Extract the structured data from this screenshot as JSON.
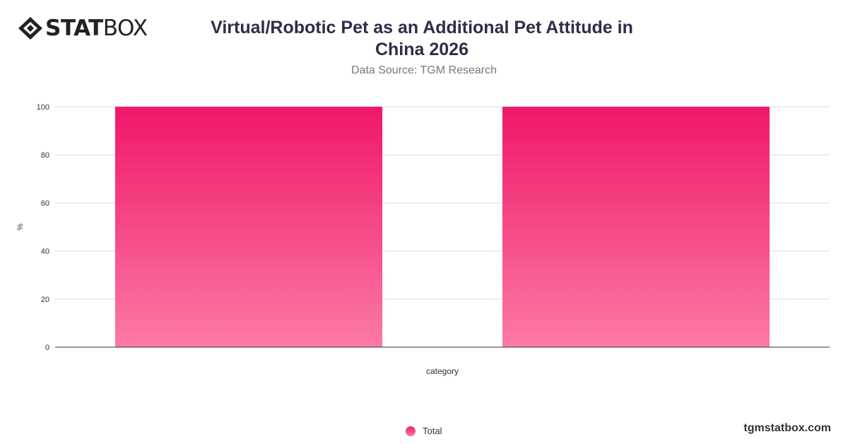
{
  "brand": {
    "logo_bold": "STAT",
    "logo_light": "BOX",
    "website": "tgmstatbox.com"
  },
  "header": {
    "title": "Virtual/Robotic Pet as an Additional Pet Attitude in China 2026",
    "subtitle": "Data Source: TGM Research"
  },
  "chart_data": {
    "type": "bar",
    "xlabel": "category",
    "ylabel": "%",
    "ylim": [
      0,
      100
    ],
    "yticks": [
      "0",
      "20",
      "40",
      "60",
      "80",
      "100"
    ],
    "grid": true,
    "legend_placement": "bottom-center",
    "series": [
      {
        "name": "Total",
        "values": [
          100,
          100
        ],
        "color": "#f0246a"
      }
    ]
  },
  "colors": {
    "bar_top": "#f0176a",
    "bar_bottom": "#fc7aa6",
    "grid": "#dddddd",
    "axis": "#333333"
  }
}
